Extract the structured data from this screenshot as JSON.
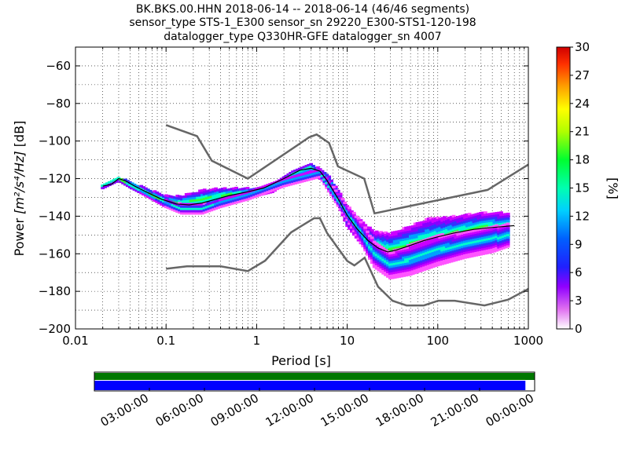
{
  "chart_data": {
    "type": "heatmap",
    "title_lines": [
      "BK.BKS.00.HHN   2018-06-14 -- 2018-06-14  (46/46 segments)",
      "sensor_type STS-1_E300 sensor_sn 29220_E300-STS1-120-198",
      "datalogger_type Q330HR-GFE datalogger_sn 4007"
    ],
    "xlabel_text": "Period [s]",
    "ylabel_prefix": "Power ",
    "ylabel_units": "[m²/s⁴/Hz]",
    "ylabel_suffix": " [dB]",
    "x_scale": "log",
    "xlim": [
      0.01,
      1000
    ],
    "ylim": [
      -200,
      -50
    ],
    "x_ticks": [
      0.01,
      0.1,
      1,
      10,
      100,
      1000
    ],
    "x_tick_labels": [
      "0.01",
      "0.1",
      "1",
      "10",
      "100",
      "1000"
    ],
    "y_ticks": [
      -60,
      -80,
      -100,
      -120,
      -140,
      -160,
      -180,
      -200
    ],
    "y_tick_labels": [
      "−60",
      "−80",
      "−100",
      "−120",
      "−140",
      "−160",
      "−180",
      "−200"
    ],
    "grid": true,
    "colorbar": {
      "label": "[%]",
      "range": [
        0,
        30
      ],
      "ticks": [
        0,
        3,
        6,
        9,
        12,
        15,
        18,
        21,
        24,
        27,
        30
      ],
      "tick_labels": [
        "0",
        "3",
        "6",
        "9",
        "12",
        "15",
        "18",
        "21",
        "24",
        "27",
        "30"
      ]
    },
    "noise_model_color": "#666666",
    "noise_models": [
      {
        "name": "",
        "x": [
          0.1,
          0.22,
          0.32,
          0.8,
          3.8,
          4.6,
          6.3,
          7.9,
          15.4,
          20,
          354.8,
          1000
        ],
        "y": [
          -91.5,
          -97.4,
          -110.5,
          -120,
          -98,
          -96.5,
          -101,
          -113.5,
          -120,
          -138.5,
          -126,
          -112.5
        ]
      },
      {
        "name": "",
        "x": [
          0.1,
          0.17,
          0.4,
          0.8,
          1.24,
          2.4,
          4.3,
          5,
          6,
          10,
          12,
          15.6,
          21.9,
          31.6,
          45,
          70,
          101,
          154,
          328,
          600,
          1000
        ],
        "y": [
          -168,
          -166.7,
          -166.7,
          -169.2,
          -163.7,
          -148.6,
          -141.1,
          -141.1,
          -149,
          -163.8,
          -166.2,
          -162.1,
          -177.5,
          -185,
          -187.5,
          -187.5,
          -185,
          -185,
          -187.5,
          -184.4,
          -178.7
        ]
      }
    ],
    "mode_curve": {
      "name": "",
      "x": [
        0.02,
        0.025,
        0.03,
        0.035,
        0.045,
        0.06,
        0.09,
        0.13,
        0.18,
        0.25,
        0.35,
        0.5,
        0.8,
        1.2,
        2,
        3,
        4,
        5,
        6,
        8,
        10,
        13,
        17,
        22,
        28,
        35,
        50,
        70,
        100,
        150,
        250,
        400,
        700
      ],
      "y": [
        -124,
        -123,
        -120,
        -121,
        -124,
        -127,
        -131,
        -133.5,
        -134,
        -133,
        -131,
        -129,
        -127,
        -125,
        -120,
        -115.5,
        -114.5,
        -116,
        -121,
        -131,
        -139.5,
        -147,
        -153,
        -157,
        -159,
        -158,
        -155.5,
        -153,
        -151,
        -149,
        -147,
        -146,
        -145
      ]
    },
    "density_bands": [
      {
        "x": [
          0.02,
          0.03,
          0.04,
          0.06,
          0.1,
          0.15,
          0.25,
          0.4,
          0.6,
          1,
          1.5,
          2.5,
          4,
          6,
          8,
          10,
          14,
          20,
          30,
          50,
          80,
          150,
          300,
          600
        ],
        "center": [
          -124,
          -120,
          -123,
          -127,
          -132,
          -133,
          -131,
          -129,
          -128,
          -127,
          -125,
          -118,
          -114,
          -120,
          -130,
          -140,
          -148,
          -155,
          -158,
          -155,
          -152,
          -149,
          -146,
          -145
        ],
        "spread": [
          1,
          1,
          1.5,
          2,
          3,
          4,
          5,
          4,
          3,
          2,
          2,
          2,
          2,
          3,
          4,
          5,
          6,
          7,
          9,
          10,
          11,
          9,
          8,
          7
        ]
      },
      {
        "x": [
          0.1,
          0.15,
          0.25,
          0.4,
          0.8,
          2,
          5,
          10,
          15,
          20,
          30,
          50,
          100,
          200,
          400,
          600
        ],
        "center": [
          -133,
          -136,
          -136,
          -133,
          -129,
          -122,
          -117,
          -138,
          -150,
          -160,
          -166,
          -163,
          -158,
          -155,
          -152,
          -150
        ],
        "spread": [
          2,
          2.5,
          2.5,
          2,
          2,
          2,
          2,
          4,
          6,
          7,
          7,
          8,
          8,
          7,
          7,
          6
        ]
      }
    ],
    "availability": {
      "time_ticks": [
        "03:00:00",
        "06:00:00",
        "09:00:00",
        "12:00:00",
        "15:00:00",
        "18:00:00",
        "21:00:00",
        "00:00:00"
      ],
      "processed_fraction": 1.0,
      "used_fraction": 0.979,
      "processed_color": "#007700",
      "used_color": "#0000ff"
    }
  }
}
